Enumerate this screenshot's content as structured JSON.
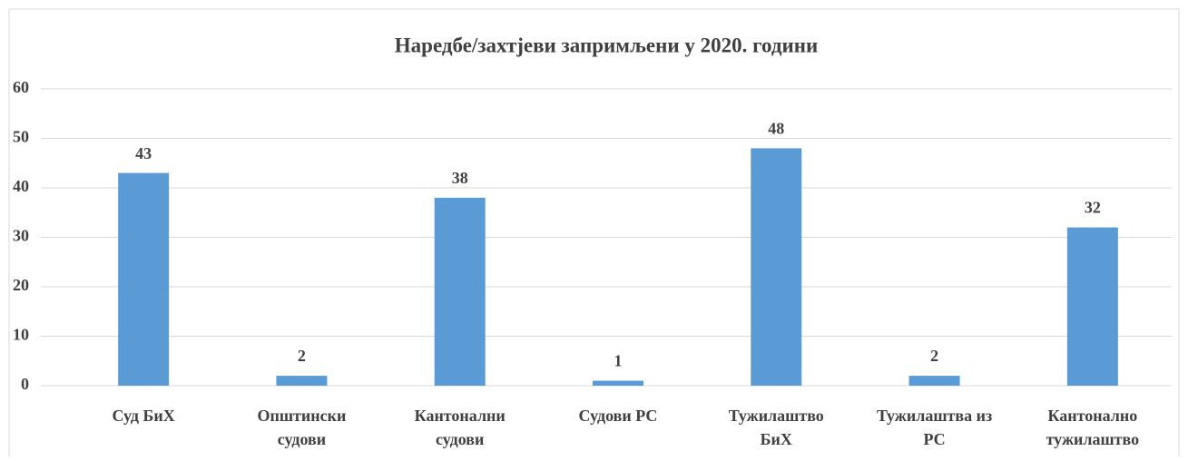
{
  "chart_data": {
    "type": "bar",
    "title": "Наредбе/захтјеви запримљени у 2020. години",
    "categories": [
      "Суд БиХ",
      "Општински судови",
      "Кантонални судови",
      "Судови РС",
      "Тужилаштво БиХ",
      "Тужилаштва из РС",
      "Кантонално тужилаштво"
    ],
    "values": [
      43,
      2,
      38,
      1,
      48,
      2,
      32
    ],
    "color": "#5b9bd5",
    "ylim": [
      0,
      60
    ],
    "yticks": [
      0,
      10,
      20,
      30,
      40,
      50,
      60
    ],
    "grid": true
  }
}
